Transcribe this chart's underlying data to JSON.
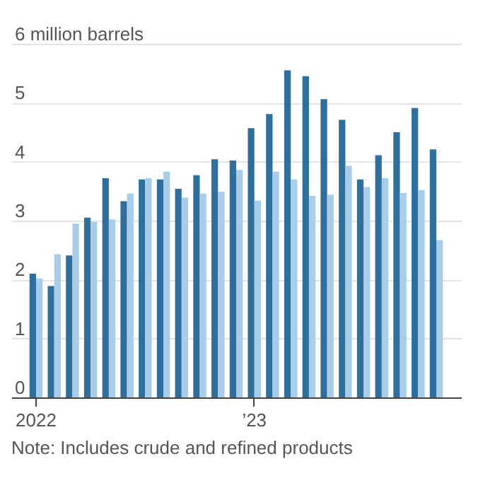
{
  "chart_data": {
    "type": "bar",
    "categories": [
      "2022",
      null,
      null,
      null,
      null,
      null,
      null,
      null,
      null,
      null,
      null,
      null,
      "’23",
      null,
      null,
      null,
      null,
      null,
      null,
      null,
      null,
      null,
      null
    ],
    "series": [
      {
        "color": "#2e6f9e",
        "values": [
          2.1,
          1.89,
          2.41,
          3.05,
          3.72,
          3.33,
          3.7,
          3.7,
          3.54,
          3.77,
          4.04,
          4.02,
          4.57,
          4.81,
          5.55,
          5.45,
          5.06,
          4.71,
          3.7,
          4.11,
          4.5,
          4.91,
          4.21
        ]
      },
      {
        "color": "#a9cde9",
        "values": [
          2.02,
          2.43,
          2.95,
          2.98,
          3.02,
          3.46,
          3.72,
          3.83,
          3.39,
          3.46,
          3.49,
          3.86,
          3.34,
          3.83,
          3.7,
          3.42,
          3.44,
          3.93,
          3.57,
          3.72,
          3.47,
          3.52,
          2.67
        ]
      }
    ],
    "ylim": [
      0,
      6
    ],
    "yticks": [
      0,
      1,
      2,
      3,
      4,
      5,
      {
        "value": 6,
        "label": "6 million barrels"
      }
    ],
    "grid": "y",
    "annotations": [
      "Note: Includes crude and refined products"
    ]
  }
}
